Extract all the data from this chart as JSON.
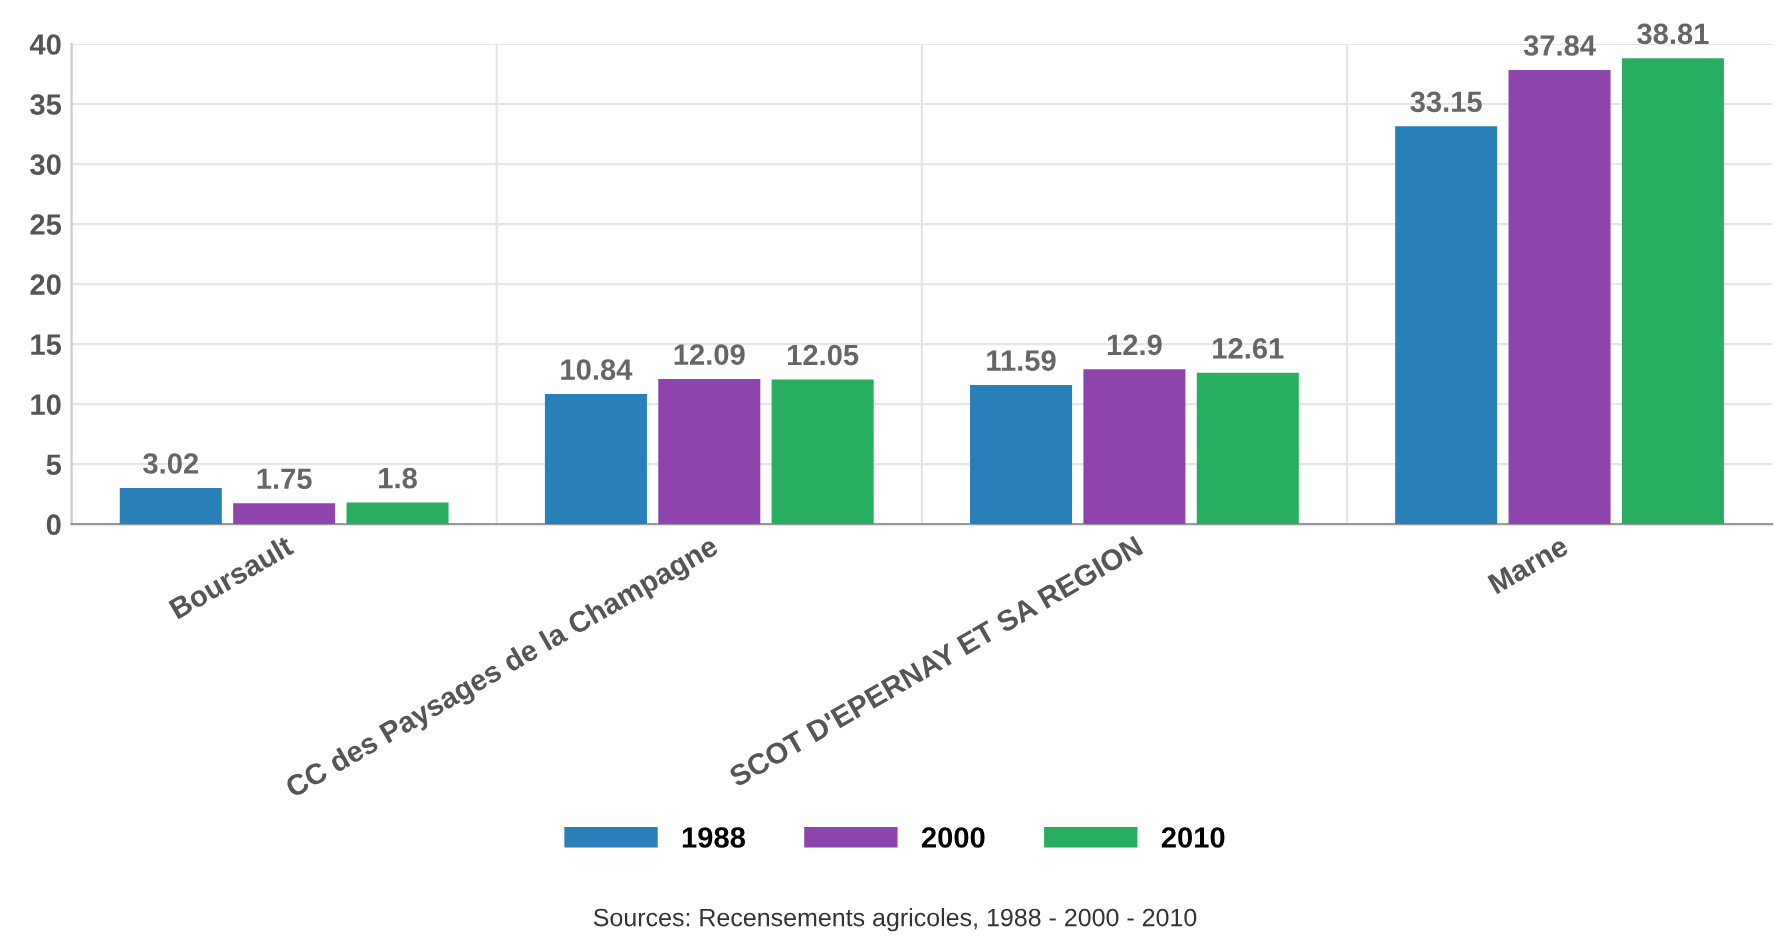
{
  "chart_data": {
    "type": "bar",
    "categories": [
      "Boursault",
      "CC des Paysages de la Champagne",
      "SCOT D'EPERNAY ET SA REGION",
      "Marne"
    ],
    "series": [
      {
        "name": "1988",
        "color": "#2980b9",
        "values": [
          3.02,
          10.84,
          11.59,
          33.15
        ]
      },
      {
        "name": "2000",
        "color": "#8e44ad",
        "values": [
          1.75,
          12.09,
          12.9,
          37.84
        ]
      },
      {
        "name": "2010",
        "color": "#27ae60",
        "values": [
          1.8,
          12.05,
          12.61,
          38.81
        ]
      }
    ],
    "ylim": [
      0,
      40
    ],
    "yticks": [
      0,
      5,
      10,
      15,
      20,
      25,
      30,
      35,
      40
    ],
    "grid": true,
    "legend": "bottom",
    "data_labels": true,
    "annotations": [
      "Sources: Recensements agricoles, 1988 - 2000 - 2010"
    ]
  }
}
